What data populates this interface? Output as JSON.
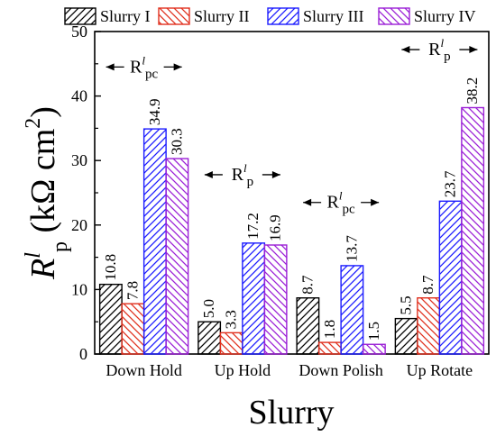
{
  "chart_data": {
    "type": "bar",
    "xlabel": "Slurry",
    "ylabel_main": "R",
    "ylabel_sup": "l",
    "ylabel_sub": "p",
    "ylabel_unit": " (kΩ cm",
    "ylabel_unit_sup": "2",
    "ylabel_unit_end": ")",
    "ylim": [
      0,
      50
    ],
    "yticks": [
      "0",
      "10",
      "20",
      "30",
      "40",
      "50"
    ],
    "grid": false,
    "legend_position": "top",
    "categories": [
      "Down Hold",
      "Up Hold",
      "Down Polish",
      "Up Rotate"
    ],
    "series": [
      {
        "name": "Slurry I",
        "color": "#000000",
        "hatch": "forward",
        "values": [
          10.8,
          5.0,
          8.7,
          5.5
        ],
        "labels": [
          "10.8",
          "5.0",
          "8.7",
          "5.5"
        ]
      },
      {
        "name": "Slurry II",
        "color": "#e0301e",
        "hatch": "back",
        "values": [
          7.8,
          3.3,
          1.8,
          8.7
        ],
        "labels": [
          "7.8",
          "3.3",
          "1.8",
          "8.7"
        ]
      },
      {
        "name": "Slurry III",
        "color": "#1c1cff",
        "hatch": "forward",
        "values": [
          34.9,
          17.2,
          13.7,
          23.7
        ],
        "labels": [
          "34.9",
          "17.2",
          "13.7",
          "23.7"
        ]
      },
      {
        "name": "Slurry IV",
        "color": "#9b1fd6",
        "hatch": "back",
        "values": [
          30.3,
          16.9,
          1.5,
          38.2
        ],
        "labels": [
          "30.3",
          "16.9",
          "1.5",
          "38.2"
        ]
      }
    ],
    "annotations": [
      {
        "group": 0,
        "main": "R",
        "sup": "l",
        "sub": "pc",
        "value_y": 44.5
      },
      {
        "group": 1,
        "main": "R",
        "sup": "l",
        "sub": "p",
        "value_y": 27.8
      },
      {
        "group": 2,
        "main": "R",
        "sup": "l",
        "sub": "pc",
        "value_y": 23.5
      },
      {
        "group": 3,
        "main": "R",
        "sup": "l",
        "sub": "p",
        "value_y": 47.2
      }
    ]
  }
}
